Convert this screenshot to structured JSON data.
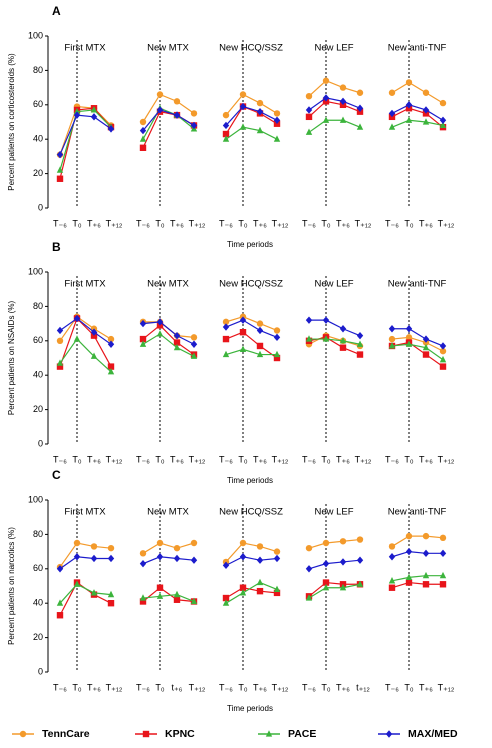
{
  "chart_data": [
    {
      "type": "line",
      "panel": "A",
      "ylabel": "Percent patients on corticosteroids (%)",
      "xlabel": "Time periods",
      "ylim": [
        0,
        100
      ],
      "yticks": [
        0,
        20,
        40,
        60,
        80,
        100
      ],
      "groups": [
        {
          "name": "First MTX",
          "categories": [
            "T₋₆",
            "T₀",
            "T₊₆",
            "T₊₁₂"
          ]
        },
        {
          "name": "New MTX",
          "categories": [
            "T₋₆",
            "T₀",
            "T₊₆",
            "T₊₁₂"
          ]
        },
        {
          "name": "New HCQ/SSZ",
          "categories": [
            "T₋₆",
            "T₀",
            "T₊₆",
            "T₊₁₂"
          ]
        },
        {
          "name": "New LEF",
          "categories": [
            "T₋₆",
            "T₀",
            "T₊₆",
            "T₊₁₂"
          ]
        },
        {
          "name": "New anti-TNF",
          "categories": [
            "T₋₆",
            "T₀",
            "T₊₆",
            "T₊₁₂"
          ]
        }
      ],
      "series": [
        {
          "name": "TennCare",
          "color": "#f39a2b",
          "marker": "circle",
          "values": [
            [
              31,
              59,
              58,
              48
            ],
            [
              50,
              66,
              62,
              55
            ],
            [
              54,
              66,
              61,
              55
            ],
            [
              65,
              74,
              70,
              67
            ],
            [
              67,
              73,
              67,
              61
            ]
          ]
        },
        {
          "name": "KPNC",
          "color": "#e8141a",
          "marker": "square",
          "values": [
            [
              17,
              57,
              58,
              47
            ],
            [
              35,
              56,
              54,
              48
            ],
            [
              43,
              59,
              55,
              49
            ],
            [
              53,
              62,
              60,
              56
            ],
            [
              53,
              58,
              55,
              47
            ]
          ]
        },
        {
          "name": "PACE",
          "color": "#3cb43c",
          "marker": "triangle",
          "values": [
            [
              22,
              56,
              57,
              47
            ],
            [
              40,
              58,
              54,
              46
            ],
            [
              40,
              47,
              45,
              40
            ],
            [
              44,
              51,
              51,
              47
            ],
            [
              47,
              51,
              50,
              48
            ]
          ]
        },
        {
          "name": "MAX/MED",
          "color": "#1c1ccc",
          "marker": "diamond",
          "values": [
            [
              31,
              54,
              53,
              46
            ],
            [
              45,
              57,
              54,
              48
            ],
            [
              48,
              59,
              56,
              51
            ],
            [
              57,
              64,
              62,
              58
            ],
            [
              55,
              60,
              57,
              51
            ]
          ]
        }
      ]
    },
    {
      "type": "line",
      "panel": "B",
      "ylabel": "Percent patients on NSAIDs (%)",
      "xlabel": "Time periods",
      "ylim": [
        0,
        100
      ],
      "yticks": [
        0,
        20,
        40,
        60,
        80,
        100
      ],
      "groups": [
        {
          "name": "First MTX",
          "categories": [
            "T₋₆",
            "T₀",
            "T₊₆",
            "T₊₁₂"
          ]
        },
        {
          "name": "New MTX",
          "categories": [
            "T₋₆",
            "T₀",
            "T₊₆",
            "T₊₁₂"
          ]
        },
        {
          "name": "New HCQ/SSZ",
          "categories": [
            "T₋₆",
            "T₀",
            "T₊₆",
            "T₊₁₂"
          ]
        },
        {
          "name": "New LEF",
          "categories": [
            "T₋₆",
            "T₀",
            "T₊₆",
            "T₊₁₂"
          ]
        },
        {
          "name": "New anti-TNF",
          "categories": [
            "T₋₆",
            "T₀",
            "T₊₆",
            "T₊₁₂"
          ]
        }
      ],
      "series": [
        {
          "name": "TennCare",
          "color": "#f39a2b",
          "marker": "circle",
          "values": [
            [
              60,
              74,
              67,
              61
            ],
            [
              71,
              71,
              63,
              62
            ],
            [
              71,
              74,
              70,
              66
            ],
            [
              58,
              63,
              60,
              57
            ],
            [
              61,
              62,
              59,
              54
            ]
          ]
        },
        {
          "name": "KPNC",
          "color": "#e8141a",
          "marker": "square",
          "values": [
            [
              45,
              73,
              63,
              45
            ],
            [
              61,
              69,
              59,
              52
            ],
            [
              61,
              65,
              57,
              50
            ],
            [
              60,
              62,
              56,
              52
            ],
            [
              57,
              59,
              52,
              45
            ]
          ]
        },
        {
          "name": "PACE",
          "color": "#3cb43c",
          "marker": "triangle",
          "values": [
            [
              47,
              61,
              51,
              42
            ],
            [
              58,
              64,
              56,
              51
            ],
            [
              52,
              55,
              52,
              52
            ],
            [
              61,
              61,
              60,
              58
            ],
            [
              57,
              58,
              56,
              49
            ]
          ]
        },
        {
          "name": "MAX/MED",
          "color": "#1c1ccc",
          "marker": "diamond",
          "values": [
            [
              66,
              73,
              65,
              58
            ],
            [
              70,
              71,
              63,
              58
            ],
            [
              68,
              72,
              66,
              62
            ],
            [
              72,
              72,
              67,
              63
            ],
            [
              67,
              67,
              61,
              57
            ]
          ]
        }
      ]
    },
    {
      "type": "line",
      "panel": "C",
      "ylabel": "Percent patients on narcotics (%)",
      "xlabel": "Time periods",
      "ylim": [
        0,
        100
      ],
      "yticks": [
        0,
        20,
        40,
        60,
        80,
        100
      ],
      "groups": [
        {
          "name": "First MTX",
          "categories": [
            "T₋₆",
            "T₀",
            "T₊₆",
            "T₊₁₂"
          ]
        },
        {
          "name": "New MTX",
          "categories": [
            "T₋₆",
            "T₀",
            "t₊₆",
            "T₊₁₂"
          ]
        },
        {
          "name": "New HCQ/SSZ",
          "categories": [
            "T₋₆",
            "T₀",
            "T₊₆",
            "T₊₁₂"
          ]
        },
        {
          "name": "New LEF",
          "categories": [
            "T₋₆",
            "T₀",
            "T₊₆",
            "t₊₁₂"
          ]
        },
        {
          "name": "New anti-TNF",
          "categories": [
            "T₋₆",
            "T₀",
            "T₊₆",
            "T₊₁₂"
          ]
        }
      ],
      "series": [
        {
          "name": "TennCare",
          "color": "#f39a2b",
          "marker": "circle",
          "values": [
            [
              61,
              75,
              73,
              72
            ],
            [
              69,
              75,
              72,
              75
            ],
            [
              64,
              75,
              73,
              70
            ],
            [
              72,
              75,
              76,
              77
            ],
            [
              73,
              79,
              79,
              78
            ]
          ]
        },
        {
          "name": "KPNC",
          "color": "#e8141a",
          "marker": "square",
          "values": [
            [
              33,
              52,
              45,
              40
            ],
            [
              41,
              49,
              42,
              41
            ],
            [
              43,
              49,
              47,
              46
            ],
            [
              44,
              52,
              51,
              51
            ],
            [
              49,
              52,
              51,
              51
            ]
          ]
        },
        {
          "name": "PACE",
          "color": "#3cb43c",
          "marker": "triangle",
          "values": [
            [
              40,
              51,
              46,
              45
            ],
            [
              43,
              44,
              45,
              41
            ],
            [
              40,
              46,
              52,
              48
            ],
            [
              43,
              49,
              49,
              51
            ],
            [
              53,
              55,
              56,
              56
            ]
          ]
        },
        {
          "name": "MAX/MED",
          "color": "#1c1ccc",
          "marker": "diamond",
          "values": [
            [
              60,
              67,
              66,
              66
            ],
            [
              63,
              67,
              66,
              65
            ],
            [
              62,
              67,
              65,
              66
            ],
            [
              60,
              63,
              64,
              65
            ],
            [
              67,
              70,
              69,
              69
            ]
          ]
        }
      ]
    }
  ]
}
